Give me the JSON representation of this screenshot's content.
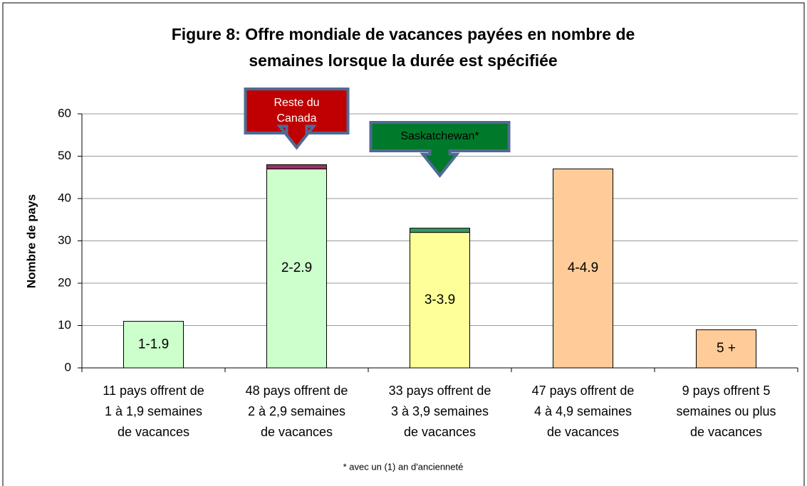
{
  "chart_data": {
    "type": "bar",
    "stacked": true,
    "title": [
      "Figure 8: Offre mondiale de vacances payées en nombre de",
      "semaines lorsque la durée est spécifiée"
    ],
    "y_label": "Nombre de pays",
    "categories": [
      [
        "11 pays offrent de",
        "1 à 1,9 semaines",
        "de vacances"
      ],
      [
        "48 pays offrent de",
        "2 à 2,9 semaines",
        "de vacances"
      ],
      [
        "33 pays offrent de",
        "3 à 3,9 semaines",
        "de vacances"
      ],
      [
        "47 pays offrent de",
        "4 à 4,9 semaines",
        "de vacances"
      ],
      [
        "9 pays offrent 5",
        "semaines ou plus",
        "de vacances"
      ]
    ],
    "bar_labels": [
      "1-1.9",
      "2-2.9",
      "3-3.9",
      "4-4.9",
      "5 +"
    ],
    "series": [
      {
        "colors": [
          "#ccffcc",
          "#ccffcc",
          "#ffff99",
          "#ffcc99",
          "#ffcc99"
        ],
        "values": [
          11,
          47,
          32,
          47,
          9
        ]
      },
      {
        "name": "Reste du Canada",
        "color": "#993366",
        "values": [
          null,
          1,
          null,
          null,
          null
        ]
      },
      {
        "name": "Saskatchewan*",
        "color": "#339966",
        "values": [
          null,
          null,
          1,
          null,
          null
        ]
      }
    ],
    "callouts": [
      {
        "series": 1,
        "category": 1,
        "color": "#c00000"
      },
      {
        "series": 2,
        "category": 2,
        "color": "#007a2a"
      }
    ],
    "ylim": [
      0,
      60
    ],
    "yticks": [
      0,
      10,
      20,
      30,
      40,
      50,
      60
    ],
    "grid": true,
    "footnote": "* avec un (1) an d'ancienneté"
  }
}
